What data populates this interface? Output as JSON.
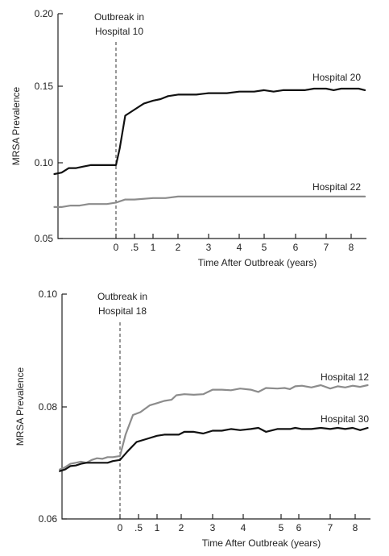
{
  "chart_data": [
    {
      "type": "line",
      "xlabel": "Time After Outbreak (years)",
      "ylabel": "MRSA Prevalence",
      "ylim": [
        0.05,
        0.2
      ],
      "y_ticks": [
        "0.05",
        "0.10",
        "0.15",
        "0.20"
      ],
      "x_ticks": [
        {
          "label": "0",
          "value": 0
        },
        {
          "label": ".5",
          "value": 0.5
        },
        {
          "label": "1",
          "value": 1
        },
        {
          "label": "2",
          "value": 2
        },
        {
          "label": "3",
          "value": 3
        },
        {
          "label": "4",
          "value": 4
        },
        {
          "label": "5",
          "value": 5
        },
        {
          "label": "6",
          "value": 6
        },
        {
          "label": "7",
          "value": 7
        },
        {
          "label": "8",
          "value": 8
        }
      ],
      "axis_scale": "piecewise: 0 to 1 in ~0.45 per half-year, then ~1 unit per year",
      "annotation": {
        "line1": "Outbreak in",
        "line2": "Hospital 10",
        "x": 0
      },
      "grid": false,
      "series": [
        {
          "name": "Hospital 20",
          "color": "#111111",
          "points": [
            [
              -3.4,
              0.093
            ],
            [
              -3.0,
              0.094
            ],
            [
              -2.6,
              0.097
            ],
            [
              -2.2,
              0.097
            ],
            [
              -1.8,
              0.098
            ],
            [
              -1.4,
              0.099
            ],
            [
              -1.0,
              0.099
            ],
            [
              -0.6,
              0.099
            ],
            [
              -0.2,
              0.099
            ],
            [
              0.0,
              0.099
            ],
            [
              0.1,
              0.11
            ],
            [
              0.25,
              0.132
            ],
            [
              0.5,
              0.136
            ],
            [
              0.75,
              0.14
            ],
            [
              1.0,
              0.142
            ],
            [
              1.3,
              0.143
            ],
            [
              1.6,
              0.145
            ],
            [
              2.0,
              0.146
            ],
            [
              2.3,
              0.146
            ],
            [
              2.6,
              0.146
            ],
            [
              3.0,
              0.147
            ],
            [
              3.3,
              0.147
            ],
            [
              3.6,
              0.147
            ],
            [
              4.0,
              0.148
            ],
            [
              4.3,
              0.148
            ],
            [
              4.6,
              0.148
            ],
            [
              5.0,
              0.149
            ],
            [
              5.3,
              0.148
            ],
            [
              5.6,
              0.149
            ],
            [
              6.0,
              0.149
            ],
            [
              6.3,
              0.149
            ],
            [
              6.6,
              0.15
            ],
            [
              7.0,
              0.15
            ],
            [
              7.3,
              0.149
            ],
            [
              7.6,
              0.15
            ],
            [
              8.0,
              0.15
            ],
            [
              8.3,
              0.15
            ],
            [
              8.55,
              0.149
            ]
          ]
        },
        {
          "name": "Hospital 22",
          "color": "#8c8c8c",
          "points": [
            [
              -3.4,
              0.071
            ],
            [
              -3.0,
              0.071
            ],
            [
              -2.5,
              0.072
            ],
            [
              -2.0,
              0.072
            ],
            [
              -1.5,
              0.073
            ],
            [
              -1.0,
              0.073
            ],
            [
              -0.5,
              0.073
            ],
            [
              0.0,
              0.074
            ],
            [
              0.25,
              0.076
            ],
            [
              0.5,
              0.076
            ],
            [
              1.0,
              0.077
            ],
            [
              1.5,
              0.077
            ],
            [
              2.0,
              0.078
            ],
            [
              2.5,
              0.078
            ],
            [
              3.0,
              0.078
            ],
            [
              3.5,
              0.078
            ],
            [
              4.0,
              0.078
            ],
            [
              4.5,
              0.078
            ],
            [
              5.0,
              0.078
            ],
            [
              5.5,
              0.078
            ],
            [
              6.0,
              0.078
            ],
            [
              6.5,
              0.078
            ],
            [
              7.0,
              0.078
            ],
            [
              7.5,
              0.078
            ],
            [
              8.0,
              0.078
            ],
            [
              8.55,
              0.078
            ]
          ]
        }
      ]
    },
    {
      "type": "line",
      "xlabel": "Time After Outbreak (years)",
      "ylabel": "MRSA Prevalence",
      "ylim": [
        0.06,
        0.1
      ],
      "y_ticks": [
        "0.06",
        "0.08",
        "0.10"
      ],
      "x_ticks": [
        {
          "label": "0",
          "value": 0
        },
        {
          "label": ".5",
          "value": 0.5
        },
        {
          "label": "1",
          "value": 1
        },
        {
          "label": "2",
          "value": 2
        },
        {
          "label": "3",
          "value": 3
        },
        {
          "label": "4",
          "value": 4
        },
        {
          "label": "5",
          "value": 5
        },
        {
          "label": "6",
          "value": 6
        },
        {
          "label": "7",
          "value": 7
        },
        {
          "label": "8",
          "value": 8
        }
      ],
      "axis_scale": "piecewise: 0 to 1 in ~0.45 per half-year, then ~1 unit per year",
      "annotation": {
        "line1": "Outbreak in",
        "line2": "Hospital 18",
        "x": 0
      },
      "grid": false,
      "series": [
        {
          "name": "Hospital 12",
          "color": "#8c8c8c",
          "points": [
            [
              -3.4,
              0.0688
            ],
            [
              -3.1,
              0.0692
            ],
            [
              -2.8,
              0.0698
            ],
            [
              -2.5,
              0.07
            ],
            [
              -2.2,
              0.0702
            ],
            [
              -1.9,
              0.07
            ],
            [
              -1.6,
              0.0705
            ],
            [
              -1.3,
              0.0708
            ],
            [
              -1.0,
              0.0707
            ],
            [
              -0.7,
              0.071
            ],
            [
              -0.4,
              0.071
            ],
            [
              0.0,
              0.0712
            ],
            [
              0.15,
              0.075
            ],
            [
              0.35,
              0.0785
            ],
            [
              0.55,
              0.079
            ],
            [
              0.8,
              0.0802
            ],
            [
              1.0,
              0.0806
            ],
            [
              1.3,
              0.081
            ],
            [
              1.6,
              0.0812
            ],
            [
              1.8,
              0.082
            ],
            [
              2.1,
              0.0822
            ],
            [
              2.4,
              0.0821
            ],
            [
              2.7,
              0.0822
            ],
            [
              3.0,
              0.083
            ],
            [
              3.3,
              0.083
            ],
            [
              3.6,
              0.0829
            ],
            [
              3.9,
              0.0832
            ],
            [
              4.2,
              0.083
            ],
            [
              4.4,
              0.0826
            ],
            [
              4.6,
              0.0833
            ],
            [
              4.9,
              0.0832
            ],
            [
              5.2,
              0.0833
            ],
            [
              5.5,
              0.0831
            ],
            [
              5.8,
              0.0836
            ],
            [
              6.1,
              0.0837
            ],
            [
              6.4,
              0.0834
            ],
            [
              6.7,
              0.0838
            ],
            [
              7.0,
              0.0832
            ],
            [
              7.3,
              0.0836
            ],
            [
              7.6,
              0.0834
            ],
            [
              7.9,
              0.0837
            ],
            [
              8.2,
              0.0835
            ],
            [
              8.5,
              0.0838
            ]
          ]
        },
        {
          "name": "Hospital 30",
          "color": "#111111",
          "points": [
            [
              -3.4,
              0.0685
            ],
            [
              -3.1,
              0.0688
            ],
            [
              -2.8,
              0.0694
            ],
            [
              -2.5,
              0.0695
            ],
            [
              -2.2,
              0.0698
            ],
            [
              -1.9,
              0.07
            ],
            [
              -1.6,
              0.07
            ],
            [
              -1.3,
              0.07
            ],
            [
              -1.0,
              0.07
            ],
            [
              -0.7,
              0.07
            ],
            [
              -0.4,
              0.0703
            ],
            [
              0.0,
              0.0705
            ],
            [
              0.2,
              0.072
            ],
            [
              0.45,
              0.0737
            ],
            [
              0.7,
              0.0742
            ],
            [
              1.0,
              0.0748
            ],
            [
              1.3,
              0.075
            ],
            [
              1.6,
              0.075
            ],
            [
              1.9,
              0.075
            ],
            [
              2.1,
              0.0755
            ],
            [
              2.4,
              0.0755
            ],
            [
              2.7,
              0.0752
            ],
            [
              3.0,
              0.0757
            ],
            [
              3.3,
              0.0757
            ],
            [
              3.6,
              0.076
            ],
            [
              3.9,
              0.0758
            ],
            [
              4.2,
              0.076
            ],
            [
              4.4,
              0.0762
            ],
            [
              4.6,
              0.0755
            ],
            [
              4.9,
              0.076
            ],
            [
              5.2,
              0.076
            ],
            [
              5.5,
              0.076
            ],
            [
              5.8,
              0.0762
            ],
            [
              6.1,
              0.076
            ],
            [
              6.4,
              0.076
            ],
            [
              6.7,
              0.0762
            ],
            [
              7.0,
              0.076
            ],
            [
              7.3,
              0.0762
            ],
            [
              7.6,
              0.076
            ],
            [
              7.9,
              0.0762
            ],
            [
              8.2,
              0.0758
            ],
            [
              8.5,
              0.0762
            ]
          ]
        }
      ]
    }
  ]
}
